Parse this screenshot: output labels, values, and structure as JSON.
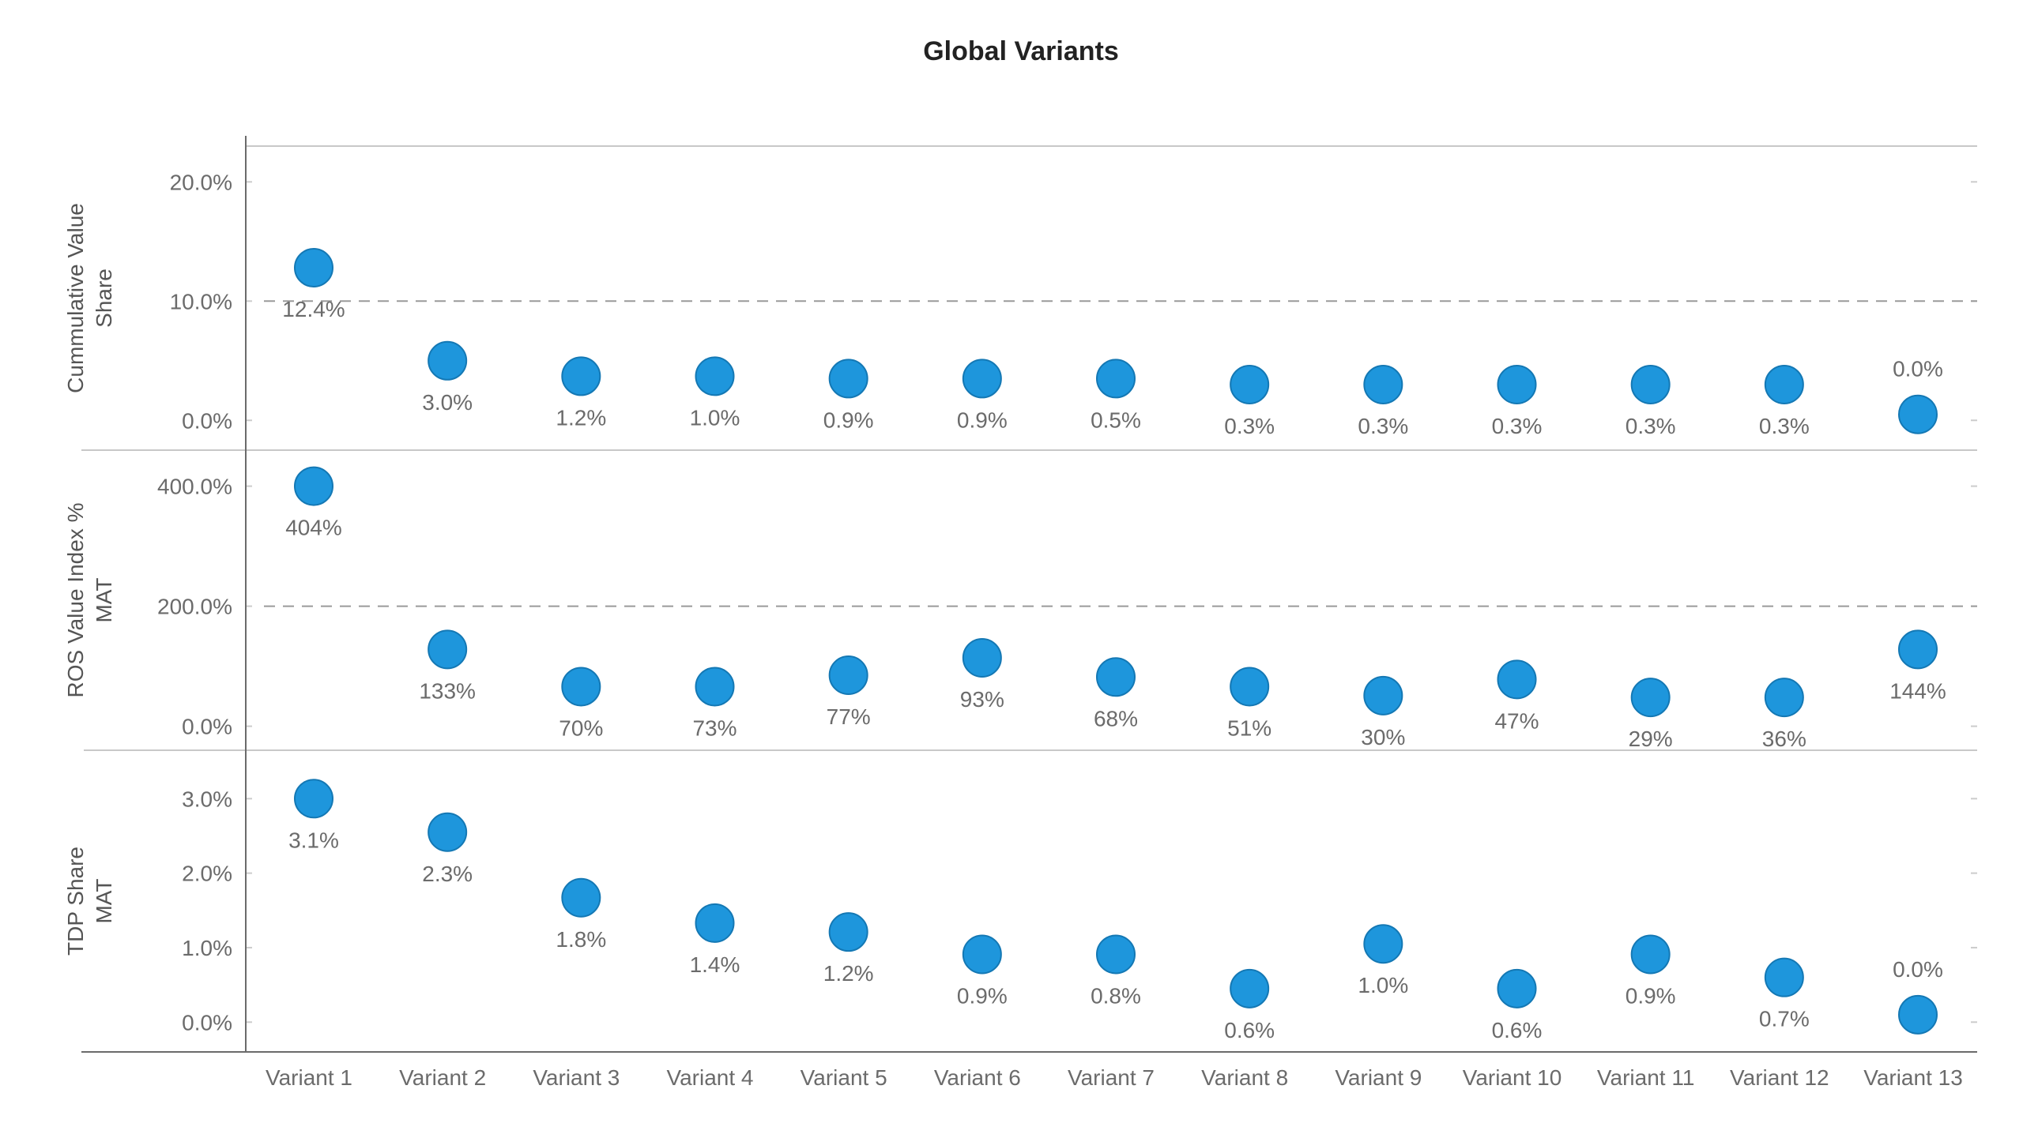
{
  "chart_data": {
    "type": "scatter",
    "title": "Global Variants",
    "categories": [
      "Variant 1",
      "Variant 2",
      "Variant 3",
      "Variant 4",
      "Variant 5",
      "Variant 6",
      "Variant 7",
      "Variant 8",
      "Variant 9",
      "Variant 10",
      "Variant 11",
      "Variant 12",
      "Variant 13"
    ],
    "marker_color": "#1e96dc",
    "marker_edge_color": "#1478b4",
    "panels": [
      {
        "ylabel": [
          "Cummulative Value",
          "Share"
        ],
        "ylim": [
          -2.5,
          23
        ],
        "ticks": [
          {
            "v": 0,
            "label": "0.0%"
          },
          {
            "v": 10,
            "label": "10.0%"
          },
          {
            "v": 20,
            "label": "20.0%"
          }
        ],
        "reference_line": 10,
        "values": [
          12.4,
          3.0,
          1.2,
          1.0,
          0.9,
          0.9,
          0.5,
          0.3,
          0.3,
          0.3,
          0.3,
          0.3,
          0.0
        ],
        "marker_y": [
          12.8,
          5.0,
          3.7,
          3.7,
          3.5,
          3.5,
          3.5,
          3.0,
          3.0,
          3.0,
          3.0,
          3.0,
          0.5
        ],
        "labels": [
          "12.4%",
          "3.0%",
          "1.2%",
          "1.0%",
          "0.9%",
          "0.9%",
          "0.5%",
          "0.3%",
          "0.3%",
          "0.3%",
          "0.3%",
          "0.3%",
          "0.0%"
        ],
        "label_position": [
          "below",
          "below",
          "below",
          "below",
          "below",
          "below",
          "below",
          "below",
          "below",
          "below",
          "below",
          "below",
          "above"
        ]
      },
      {
        "ylabel": [
          "ROS Value Index %",
          "MAT"
        ],
        "ylim": [
          -40,
          460
        ],
        "ticks": [
          {
            "v": 0,
            "label": "0.0%"
          },
          {
            "v": 200,
            "label": "200.0%"
          },
          {
            "v": 400,
            "label": "400.0%"
          }
        ],
        "reference_line": 200,
        "values": [
          404,
          133,
          70,
          73,
          77,
          93,
          68,
          51,
          30,
          47,
          29,
          36,
          144
        ],
        "marker_y": [
          400,
          128,
          66,
          66,
          85,
          114,
          82,
          66,
          51,
          78,
          48,
          48,
          128
        ],
        "labels": [
          "404%",
          "133%",
          "70%",
          "73%",
          "77%",
          "93%",
          "68%",
          "51%",
          "30%",
          "47%",
          "29%",
          "36%",
          "144%"
        ],
        "label_position": [
          "below",
          "below",
          "below",
          "below",
          "below",
          "below",
          "below",
          "below",
          "below",
          "below",
          "below",
          "below",
          "below"
        ]
      },
      {
        "ylabel": [
          "TDP Share",
          "MAT"
        ],
        "ylim": [
          -0.4,
          3.65
        ],
        "ticks": [
          {
            "v": 0,
            "label": "0.0%"
          },
          {
            "v": 1,
            "label": "1.0%"
          },
          {
            "v": 2,
            "label": "2.0%"
          },
          {
            "v": 3,
            "label": "3.0%"
          }
        ],
        "reference_line": null,
        "values": [
          3.1,
          2.3,
          1.8,
          1.4,
          1.2,
          0.9,
          0.8,
          0.6,
          1.0,
          0.6,
          0.9,
          0.7,
          0.0
        ],
        "marker_y": [
          3.0,
          2.55,
          1.67,
          1.33,
          1.21,
          0.91,
          0.91,
          0.45,
          1.05,
          0.45,
          0.91,
          0.6,
          0.1
        ],
        "labels": [
          "3.1%",
          "2.3%",
          "1.8%",
          "1.4%",
          "1.2%",
          "0.9%",
          "0.8%",
          "0.6%",
          "1.0%",
          "0.6%",
          "0.9%",
          "0.7%",
          "0.0%"
        ],
        "label_position": [
          "below",
          "below",
          "below",
          "below",
          "below",
          "below",
          "below",
          "below",
          "below",
          "below",
          "below",
          "below",
          "above"
        ]
      }
    ]
  }
}
